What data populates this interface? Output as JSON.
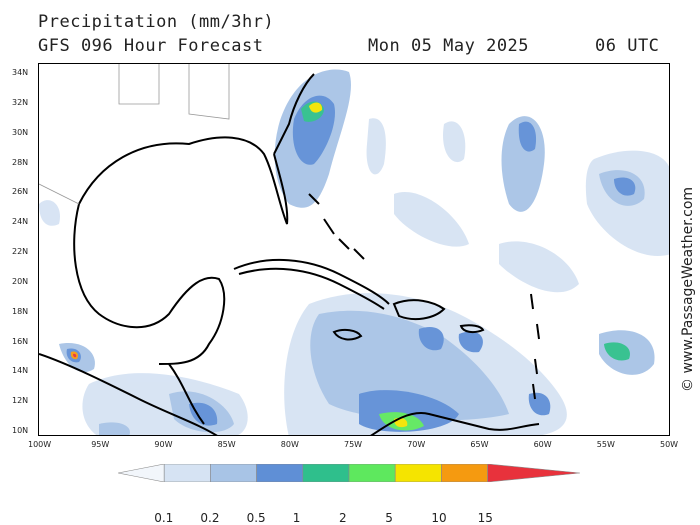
{
  "header": {
    "title": "Precipitation (mm/3hr)",
    "model": "GFS 096 Hour Forecast",
    "date": "Mon 05 May 2025",
    "time": "06 UTC"
  },
  "map": {
    "lat_labels": [
      "34N",
      "32N",
      "30N",
      "28N",
      "26N",
      "24N",
      "22N",
      "20N",
      "18N",
      "16N",
      "14N",
      "12N",
      "10N"
    ],
    "lon_labels": [
      "100W",
      "95W",
      "90W",
      "85W",
      "80W",
      "75W",
      "70W",
      "65W",
      "60W",
      "55W",
      "50W"
    ],
    "lat_range": [
      10,
      35
    ],
    "lon_range": [
      -100,
      -50
    ]
  },
  "colorbar": {
    "labels": [
      "0.1",
      "0.2",
      "0.5",
      "1",
      "2",
      "5",
      "10",
      "15"
    ],
    "colors": [
      "#f2f6fb",
      "#d6e3f3",
      "#a8c4e6",
      "#5f8fd6",
      "#2fbf8c",
      "#5ee85e",
      "#f5e400",
      "#f59a10",
      "#e8323c"
    ]
  },
  "credit": "© www.PassageWeather.com"
}
